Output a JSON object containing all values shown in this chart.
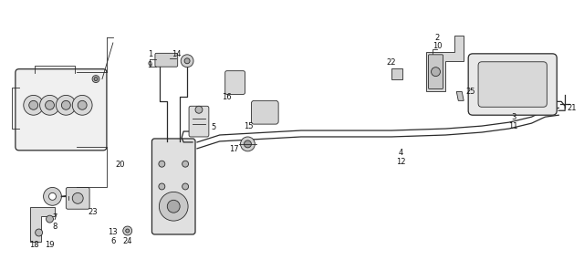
{
  "bg_color": "#ffffff",
  "line_color": "#2a2a2a",
  "text_color": "#111111",
  "fig_width": 6.4,
  "fig_height": 2.96,
  "dpi": 100
}
